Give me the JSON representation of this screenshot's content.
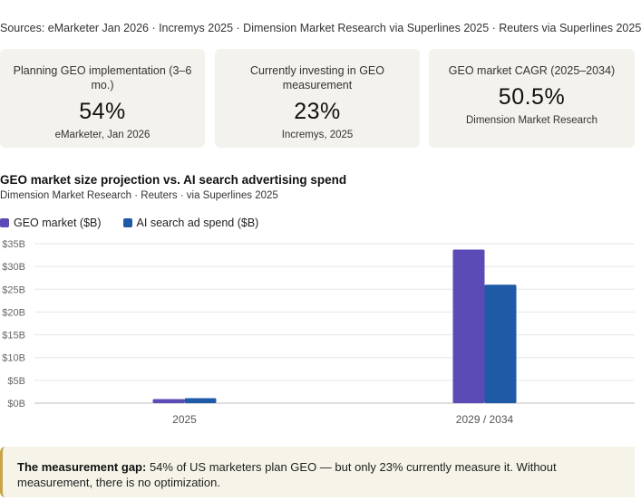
{
  "sources": "Sources: eMarketer Jan 2026 · Incremys 2025 · Dimension Market Research via Superlines 2025 · Reuters via Superlines 2025",
  "stats": [
    {
      "label": "Planning GEO implementation (3–6 mo.)",
      "value": "54%",
      "source": "eMarketer, Jan 2026"
    },
    {
      "label": "Currently investing in GEO measurement",
      "value": "23%",
      "source": "Incremys, 2025"
    },
    {
      "label": "GEO market CAGR (2025–2034)",
      "value": "50.5%",
      "source": "Dimension Market Research"
    }
  ],
  "chart_data": {
    "type": "bar",
    "title": "GEO market size projection vs. AI search advertising spend",
    "subtitle": "Dimension Market Research · Reuters · via Superlines 2025",
    "categories": [
      "2025",
      "2029 / 2034"
    ],
    "series": [
      {
        "name": "GEO market ($B)",
        "color": "#5b4bb7",
        "values": [
          0.9,
          33.7
        ]
      },
      {
        "name": "AI search ad spend ($B)",
        "color": "#1f5aa6",
        "values": [
          1.1,
          26.0
        ]
      }
    ],
    "yticks": [
      "$0B",
      "$5B",
      "$10B",
      "$15B",
      "$20B",
      "$25B",
      "$30B",
      "$35B"
    ],
    "ylim": [
      0,
      35
    ],
    "grid": true,
    "legend_position": "top-left"
  },
  "callout": {
    "bold": "The measurement gap:",
    "text": " 54% of US marketers plan GEO — but only 23% currently measure it. Without measurement, there is no optimization."
  }
}
